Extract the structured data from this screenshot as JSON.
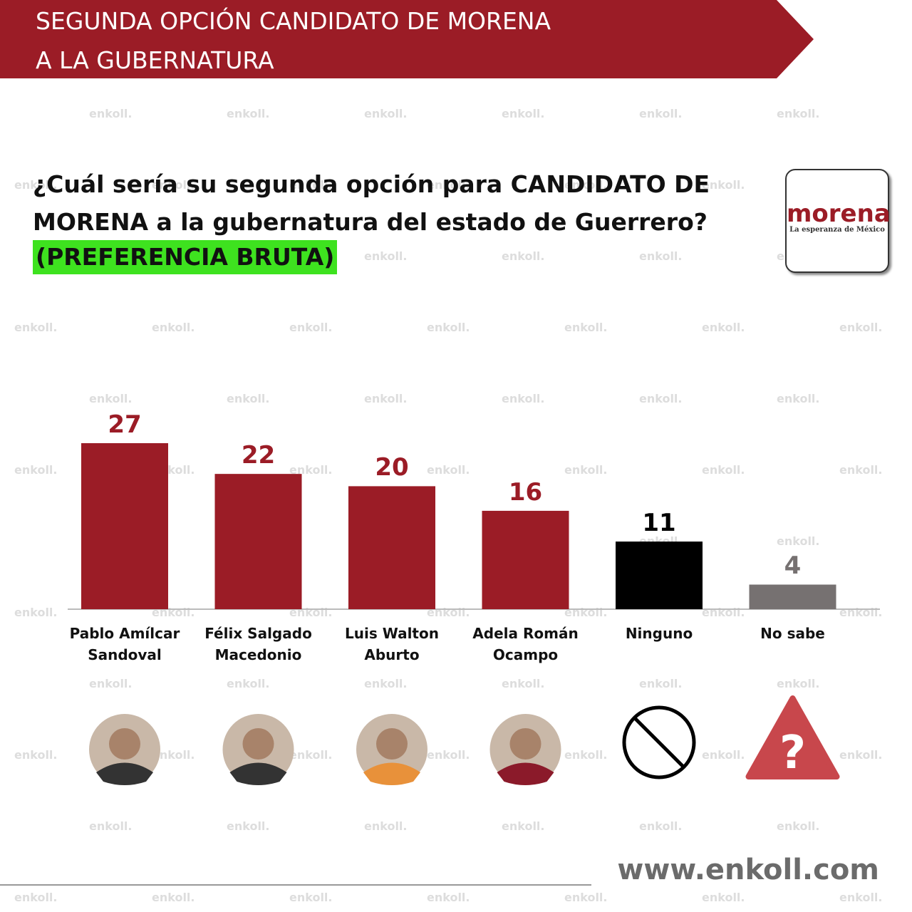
{
  "chart_data": {
    "type": "bar",
    "title": [
      "SEGUNDA OPCIÓN CANDIDATO DE MORENA",
      "A LA GUBERNATURA"
    ],
    "question": "¿Cuál sería su segunda opción para CANDIDATO DE MORENA a la gubernatura del estado de Guerrero?",
    "note": "(PREFERENCIA BRUTA)",
    "logo": {
      "name": "morena",
      "tagline": "La esperanza de México"
    },
    "categories": [
      "Pablo Amílcar Sandoval",
      "Félix Salgado Macedonio",
      "Luis Walton Aburto",
      "Adela Román Ocampo",
      "Ninguno",
      "No sabe"
    ],
    "values": [
      27,
      22,
      20,
      16,
      11,
      4
    ],
    "colors": [
      "#9b1c26",
      "#9b1c26",
      "#9b1c26",
      "#9b1c26",
      "#000000",
      "#767171"
    ],
    "label_colors": [
      "#9b1c26",
      "#9b1c26",
      "#9b1c26",
      "#9b1c26",
      "#000000",
      "#767171"
    ],
    "unknown_symbol": "?",
    "watermark": "enkoll.",
    "footer": "www.enkoll.com"
  }
}
